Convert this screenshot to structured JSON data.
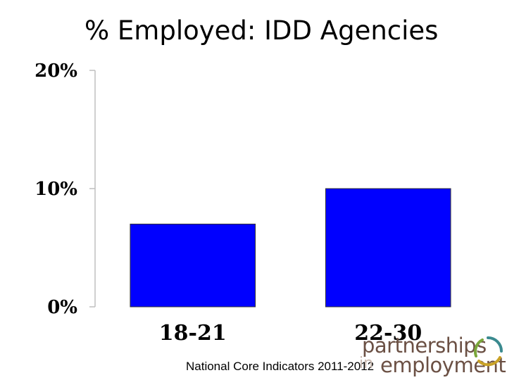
{
  "slide": {
    "title": "% Employed: IDD Agencies",
    "source": "National Core Indicators 2011-2012"
  },
  "logo": {
    "line1": "partnerships",
    "line2_prefix": "in",
    "line2": "employment",
    "ring_colors": [
      "#3a8a8f",
      "#c9a227",
      "#7aa63a"
    ]
  },
  "colors": {
    "bar": "#0000ff",
    "axis": "#bfbfbf"
  },
  "chart_data": {
    "type": "bar",
    "title": "% Employed: IDD Agencies",
    "categories": [
      "18-21",
      "22-30"
    ],
    "values": [
      7,
      10
    ],
    "ylim": [
      0,
      20
    ],
    "yticks": [
      0,
      10,
      20
    ],
    "ytick_labels": [
      "0%",
      "10%",
      "20%"
    ],
    "xlabel": "",
    "ylabel": "",
    "grid": false,
    "legend": "none"
  }
}
